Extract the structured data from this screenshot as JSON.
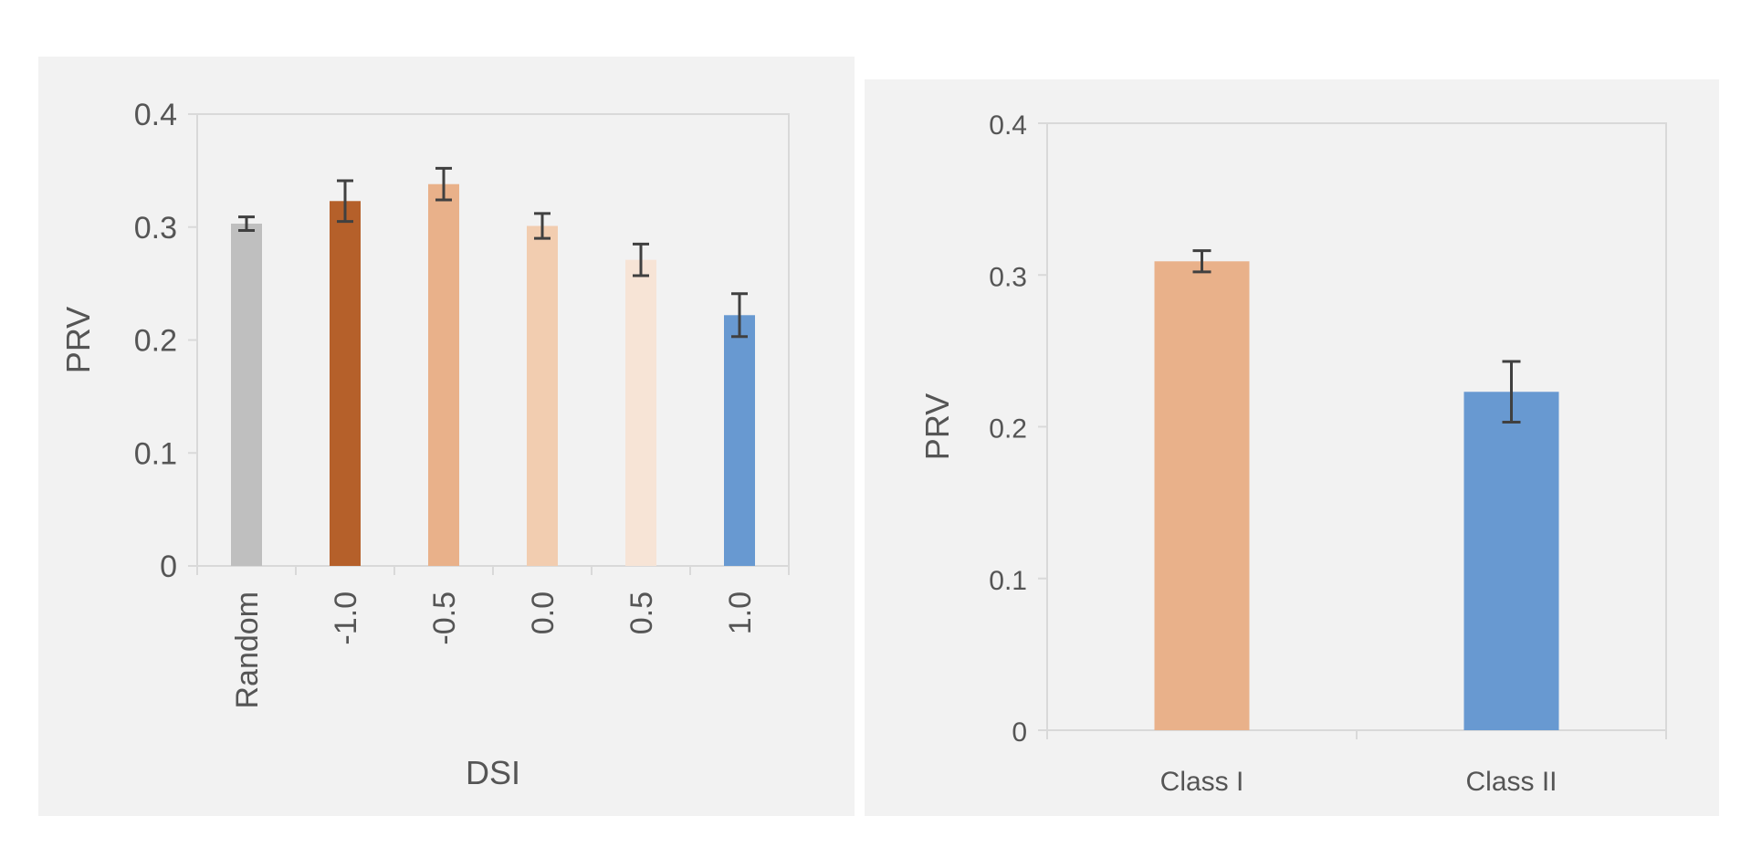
{
  "chart_data": [
    {
      "type": "bar",
      "categories": [
        "Random",
        "-1.0",
        "-0.5",
        "0.0",
        "0.5",
        "1.0"
      ],
      "values": [
        0.303,
        0.323,
        0.338,
        0.301,
        0.271,
        0.222
      ],
      "errors": [
        0.006,
        0.018,
        0.014,
        0.011,
        0.014,
        0.019
      ],
      "colors": [
        "#bfbfbf",
        "#b5602a",
        "#e9b18a",
        "#f2cdb0",
        "#f7e4d6",
        "#6899d1"
      ],
      "yticks": [
        "0",
        "0.1",
        "0.2",
        "0.3",
        "0.4"
      ],
      "ylim": [
        0,
        0.4
      ],
      "xlabel": "DSI",
      "ylabel": "PRV",
      "grid": false
    },
    {
      "type": "bar",
      "categories": [
        "Class I",
        "Class II"
      ],
      "values": [
        0.309,
        0.223
      ],
      "errors": [
        0.007,
        0.02
      ],
      "colors": [
        "#e9b18a",
        "#6899d1"
      ],
      "yticks": [
        "0",
        "0.1",
        "0.2",
        "0.3",
        "0.4"
      ],
      "ylim": [
        0,
        0.4
      ],
      "xlabel": "",
      "ylabel": "PRV",
      "grid": false
    }
  ]
}
